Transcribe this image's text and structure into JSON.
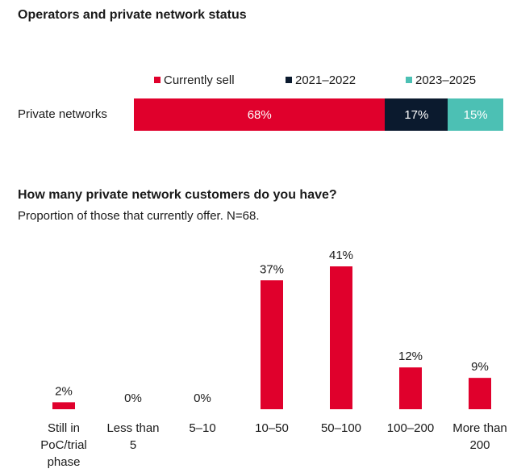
{
  "colors": {
    "red": "#e0002c",
    "navy": "#0b1a2e",
    "teal": "#4cc0b4"
  },
  "chart_data": [
    {
      "type": "bar",
      "orientation": "horizontal",
      "stacked": true,
      "title": "Operators and private network status",
      "categories": [
        "Private networks"
      ],
      "series": [
        {
          "name": "Currently sell",
          "values": [
            68
          ],
          "label": "68%",
          "color": "#e0002c"
        },
        {
          "name": "2021–2022",
          "values": [
            17
          ],
          "label": "17%",
          "color": "#0b1a2e"
        },
        {
          "name": "2023–2025",
          "values": [
            15
          ],
          "label": "15%",
          "color": "#4cc0b4"
        }
      ],
      "xlim": [
        0,
        100
      ],
      "legend": "top"
    },
    {
      "type": "bar",
      "title": "How many private network customers do you have?",
      "subtitle": "Proportion of those that currently offer. N=68.",
      "categories": [
        [
          "Still in",
          "PoC/trial",
          "phase"
        ],
        [
          "Less than",
          "5"
        ],
        [
          "5–10"
        ],
        [
          "10–50"
        ],
        [
          "50–100"
        ],
        [
          "100–200"
        ],
        [
          "More than",
          "200"
        ]
      ],
      "values": [
        2,
        0,
        0,
        37,
        41,
        12,
        9
      ],
      "value_labels": [
        "2%",
        "0%",
        "0%",
        "37%",
        "41%",
        "12%",
        "9%"
      ],
      "ylim": [
        0,
        41
      ],
      "color": "#e0002c",
      "grid": false
    }
  ]
}
